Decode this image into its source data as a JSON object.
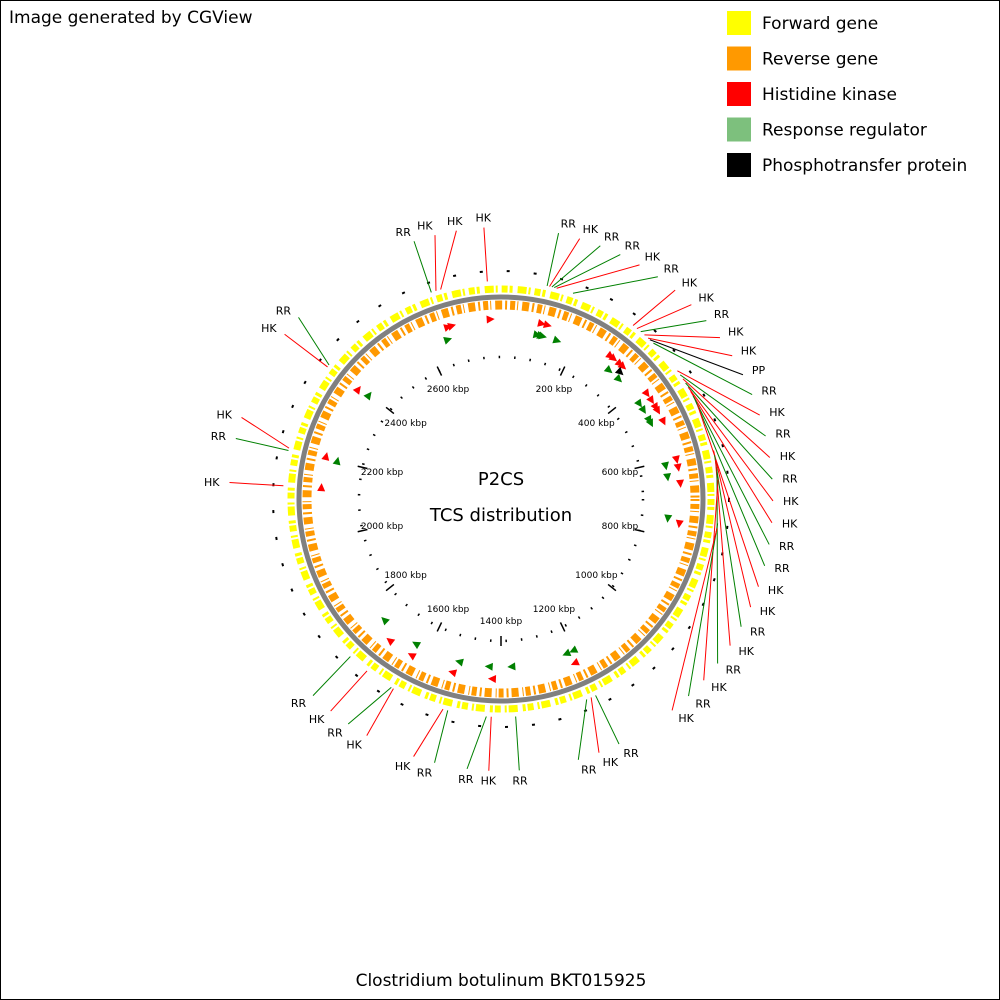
{
  "header": {
    "note": "Image generated by CGView"
  },
  "legend": [
    {
      "label": "Forward gene",
      "color": "#ffff00"
    },
    {
      "label": "Reverse gene",
      "color": "#ff9900"
    },
    {
      "label": "Histidine kinase",
      "color": "#ff0000"
    },
    {
      "label": "Response regulator",
      "color": "#7dc07d"
    },
    {
      "label": "Phosphotransfer protein",
      "color": "#000000"
    }
  ],
  "map": {
    "title": "P2CS",
    "subtitle": "TCS distribution",
    "sequence_length": 2800,
    "tick_labels": [
      {
        "value": 200,
        "label": "200 kbp"
      },
      {
        "value": 400,
        "label": "400 kbp"
      },
      {
        "value": 600,
        "label": "600 kbp"
      },
      {
        "value": 800,
        "label": "800 kbp"
      },
      {
        "value": 1000,
        "label": "1000 kbp"
      },
      {
        "value": 1200,
        "label": "1200 kbp"
      },
      {
        "value": 1400,
        "label": "1400 kbp"
      },
      {
        "value": 1600,
        "label": "1600 kbp"
      },
      {
        "value": 1800,
        "label": "1800 kbp"
      },
      {
        "value": 2000,
        "label": "2000 kbp"
      },
      {
        "value": 2200,
        "label": "2200 kbp"
      },
      {
        "value": 2400,
        "label": "2400 kbp"
      },
      {
        "value": 2600,
        "label": "2600 kbp"
      }
    ],
    "features": [
      {
        "label": "RR",
        "position": 95,
        "color": "#008000"
      },
      {
        "label": "HK",
        "position": 100,
        "color": "#ff0000"
      },
      {
        "label": "RR",
        "position": 105,
        "color": "#008000"
      },
      {
        "label": "RR",
        "position": 110,
        "color": "#008000"
      },
      {
        "label": "HK",
        "position": 115,
        "color": "#ff0000"
      },
      {
        "label": "RR",
        "position": 150,
        "color": "#008000"
      },
      {
        "label": "HK",
        "position": 290,
        "color": "#ff0000"
      },
      {
        "label": "HK",
        "position": 300,
        "color": "#ff0000"
      },
      {
        "label": "RR",
        "position": 310,
        "color": "#008000"
      },
      {
        "label": "HK",
        "position": 320,
        "color": "#ff0000"
      },
      {
        "label": "HK",
        "position": 330,
        "color": "#ff0000"
      },
      {
        "label": "PP",
        "position": 335,
        "color": "#000000"
      },
      {
        "label": "RR",
        "position": 345,
        "color": "#008000"
      },
      {
        "label": "HK",
        "position": 420,
        "color": "#ff0000"
      },
      {
        "label": "RR",
        "position": 430,
        "color": "#008000"
      },
      {
        "label": "HK",
        "position": 440,
        "color": "#ff0000"
      },
      {
        "label": "RR",
        "position": 450,
        "color": "#008000"
      },
      {
        "label": "HK",
        "position": 460,
        "color": "#ff0000"
      },
      {
        "label": "HK",
        "position": 470,
        "color": "#ff0000"
      },
      {
        "label": "RR",
        "position": 480,
        "color": "#008000"
      },
      {
        "label": "RR",
        "position": 490,
        "color": "#008000"
      },
      {
        "label": "HK",
        "position": 500,
        "color": "#ff0000"
      },
      {
        "label": "HK",
        "position": 600,
        "color": "#ff0000"
      },
      {
        "label": "RR",
        "position": 610,
        "color": "#008000"
      },
      {
        "label": "HK",
        "position": 620,
        "color": "#ff0000"
      },
      {
        "label": "RR",
        "position": 640,
        "color": "#008000"
      },
      {
        "label": "HK",
        "position": 660,
        "color": "#ff0000"
      },
      {
        "label": "RR",
        "position": 750,
        "color": "#008000"
      },
      {
        "label": "HK",
        "position": 760,
        "color": "#ff0000"
      },
      {
        "label": "RR",
        "position": 1200,
        "color": "#008000"
      },
      {
        "label": "HK",
        "position": 1210,
        "color": "#ff0000"
      },
      {
        "label": "RR",
        "position": 1220,
        "color": "#008000"
      },
      {
        "label": "RR",
        "position": 1370,
        "color": "#008000"
      },
      {
        "label": "HK",
        "position": 1420,
        "color": "#ff0000"
      },
      {
        "label": "RR",
        "position": 1430,
        "color": "#008000"
      },
      {
        "label": "RR",
        "position": 1510,
        "color": "#008000"
      },
      {
        "label": "HK",
        "position": 1520,
        "color": "#ff0000"
      },
      {
        "label": "HK",
        "position": 1630,
        "color": "#ff0000"
      },
      {
        "label": "RR",
        "position": 1635,
        "color": "#008000"
      },
      {
        "label": "HK",
        "position": 1695,
        "color": "#ff0000"
      },
      {
        "label": "RR",
        "position": 1740,
        "color": "#008000"
      },
      {
        "label": "HK",
        "position": 2127,
        "color": "#ff0000"
      },
      {
        "label": "RR",
        "position": 2200,
        "color": "#008000"
      },
      {
        "label": "HK",
        "position": 2205,
        "color": "#ff0000"
      },
      {
        "label": "HK",
        "position": 2390,
        "color": "#ff0000"
      },
      {
        "label": "RR",
        "position": 2395,
        "color": "#008000"
      },
      {
        "label": "RR",
        "position": 2655,
        "color": "#008000"
      },
      {
        "label": "HK",
        "position": 2665,
        "color": "#ff0000"
      },
      {
        "label": "HK",
        "position": 2675,
        "color": "#ff0000"
      },
      {
        "label": "HK",
        "position": 2772,
        "color": "#ff0000"
      }
    ]
  },
  "footer": "Clostridium botulinum BKT015925"
}
